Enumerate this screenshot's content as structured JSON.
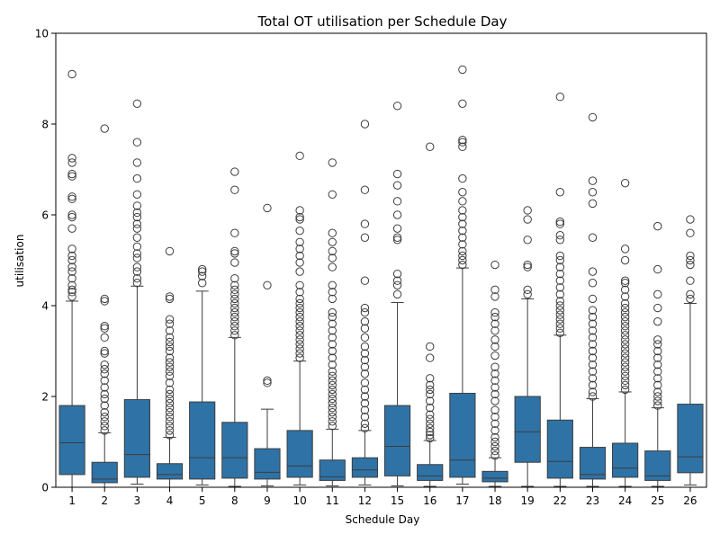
{
  "chart_data": {
    "type": "box",
    "title": "Total OT utilisation per Schedule Day",
    "xlabel": "Schedule Day",
    "ylabel": "utilisation",
    "ylim": [
      0,
      10
    ],
    "yticks": [
      0,
      2,
      4,
      6,
      8,
      10
    ],
    "grid": false,
    "legend": "none",
    "box_color": "#2f72a6",
    "categories": [
      "1",
      "2",
      "3",
      "4",
      "5",
      "8",
      "9",
      "10",
      "11",
      "12",
      "15",
      "16",
      "17",
      "18",
      "19",
      "22",
      "23",
      "24",
      "25",
      "26"
    ],
    "boxes": [
      {
        "day": "1",
        "whisker_low": 0.0,
        "q1": 0.28,
        "median": 0.98,
        "q3": 1.8,
        "whisker_high": 4.1,
        "outliers": [
          4.2,
          4.3,
          4.35,
          4.45,
          4.6,
          4.75,
          4.85,
          5.0,
          5.1,
          5.25,
          5.7,
          5.95,
          6.0,
          6.35,
          6.4,
          6.85,
          6.9,
          7.15,
          7.25,
          9.1
        ]
      },
      {
        "day": "2",
        "whisker_low": 0.0,
        "q1": 0.1,
        "median": 0.18,
        "q3": 0.55,
        "whisker_high": 1.2,
        "outliers": [
          1.25,
          1.35,
          1.45,
          1.55,
          1.65,
          1.8,
          1.95,
          2.05,
          2.2,
          2.35,
          2.5,
          2.6,
          2.7,
          2.95,
          3.0,
          3.3,
          3.5,
          3.55,
          4.1,
          4.15,
          7.9
        ]
      },
      {
        "day": "3",
        "whisker_low": 0.07,
        "q1": 0.22,
        "median": 0.72,
        "q3": 1.93,
        "whisker_high": 4.43,
        "outliers": [
          4.5,
          4.6,
          4.75,
          4.85,
          5.05,
          5.15,
          5.3,
          5.5,
          5.7,
          5.8,
          5.95,
          6.05,
          6.2,
          6.45,
          6.8,
          7.15,
          7.6,
          8.45
        ]
      },
      {
        "day": "4",
        "whisker_low": 0.0,
        "q1": 0.18,
        "median": 0.28,
        "q3": 0.52,
        "whisker_high": 1.1,
        "outliers": [
          1.15,
          1.25,
          1.35,
          1.45,
          1.55,
          1.65,
          1.75,
          1.85,
          1.95,
          2.05,
          2.15,
          2.3,
          2.45,
          2.55,
          2.65,
          2.75,
          2.85,
          3.0,
          3.1,
          3.2,
          3.3,
          3.45,
          3.6,
          3.7,
          4.15,
          4.2,
          5.2
        ]
      },
      {
        "day": "5",
        "whisker_low": 0.05,
        "q1": 0.18,
        "median": 0.65,
        "q3": 1.88,
        "whisker_high": 4.32,
        "outliers": [
          4.5,
          4.65,
          4.75,
          4.8
        ]
      },
      {
        "day": "8",
        "whisker_low": 0.02,
        "q1": 0.2,
        "median": 0.65,
        "q3": 1.43,
        "whisker_high": 3.3,
        "outliers": [
          3.35,
          3.45,
          3.55,
          3.65,
          3.75,
          3.85,
          3.95,
          4.05,
          4.15,
          4.25,
          4.35,
          4.45,
          4.6,
          4.95,
          5.15,
          5.2,
          5.6,
          6.55,
          6.95
        ]
      },
      {
        "day": "9",
        "whisker_low": 0.03,
        "q1": 0.18,
        "median": 0.33,
        "q3": 0.85,
        "whisker_high": 1.72,
        "outliers": [
          2.3,
          2.35,
          4.45,
          6.15
        ]
      },
      {
        "day": "10",
        "whisker_low": 0.05,
        "q1": 0.22,
        "median": 0.47,
        "q3": 1.25,
        "whisker_high": 2.78,
        "outliers": [
          2.85,
          2.95,
          3.05,
          3.15,
          3.25,
          3.35,
          3.45,
          3.55,
          3.65,
          3.75,
          3.85,
          3.95,
          4.05,
          4.15,
          4.3,
          4.45,
          4.75,
          4.95,
          5.1,
          5.25,
          5.4,
          5.65,
          5.9,
          5.95,
          6.1,
          7.3
        ]
      },
      {
        "day": "11",
        "whisker_low": 0.03,
        "q1": 0.15,
        "median": 0.23,
        "q3": 0.6,
        "whisker_high": 1.28,
        "outliers": [
          1.35,
          1.45,
          1.55,
          1.65,
          1.75,
          1.85,
          1.95,
          2.05,
          2.15,
          2.25,
          2.35,
          2.45,
          2.55,
          2.7,
          2.85,
          3.0,
          3.15,
          3.3,
          3.45,
          3.6,
          3.75,
          3.85,
          4.15,
          4.3,
          4.45,
          4.85,
          5.05,
          5.2,
          5.4,
          5.6,
          6.45,
          7.15
        ]
      },
      {
        "day": "12",
        "whisker_low": 0.05,
        "q1": 0.22,
        "median": 0.38,
        "q3": 0.65,
        "whisker_high": 1.25,
        "outliers": [
          1.3,
          1.4,
          1.55,
          1.7,
          1.85,
          2.0,
          2.15,
          2.3,
          2.5,
          2.65,
          2.8,
          2.95,
          3.1,
          3.3,
          3.5,
          3.65,
          3.85,
          3.95,
          4.55,
          5.5,
          5.8,
          6.55,
          8.0
        ]
      },
      {
        "day": "15",
        "whisker_low": 0.03,
        "q1": 0.25,
        "median": 0.9,
        "q3": 1.8,
        "whisker_high": 4.07,
        "outliers": [
          4.25,
          4.45,
          4.55,
          4.7,
          5.45,
          5.5,
          5.7,
          6.0,
          6.3,
          6.65,
          6.9,
          8.4
        ]
      },
      {
        "day": "16",
        "whisker_low": 0.02,
        "q1": 0.15,
        "median": 0.25,
        "q3": 0.5,
        "whisker_high": 1.03,
        "outliers": [
          1.08,
          1.15,
          1.22,
          1.3,
          1.4,
          1.5,
          1.6,
          1.75,
          1.9,
          2.05,
          2.15,
          2.25,
          2.4,
          2.85,
          3.1,
          7.5
        ]
      },
      {
        "day": "17",
        "whisker_low": 0.07,
        "q1": 0.22,
        "median": 0.6,
        "q3": 2.07,
        "whisker_high": 4.83,
        "outliers": [
          4.9,
          5.0,
          5.1,
          5.2,
          5.35,
          5.5,
          5.65,
          5.8,
          5.95,
          6.1,
          6.3,
          6.5,
          6.8,
          7.5,
          7.6,
          7.65,
          8.45,
          9.2
        ]
      },
      {
        "day": "18",
        "whisker_low": 0.02,
        "q1": 0.12,
        "median": 0.2,
        "q3": 0.35,
        "whisker_high": 0.65,
        "outliers": [
          0.7,
          0.8,
          0.9,
          1.0,
          1.1,
          1.25,
          1.4,
          1.55,
          1.7,
          1.9,
          2.05,
          2.2,
          2.35,
          2.5,
          2.65,
          2.9,
          3.1,
          3.25,
          3.45,
          3.6,
          3.75,
          3.85,
          4.2,
          4.35,
          4.9
        ]
      },
      {
        "day": "19",
        "whisker_low": 0.02,
        "q1": 0.55,
        "median": 1.22,
        "q3": 2.0,
        "whisker_high": 4.15,
        "outliers": [
          4.25,
          4.35,
          4.85,
          4.9,
          5.45,
          5.9,
          6.1
        ]
      },
      {
        "day": "22",
        "whisker_low": 0.02,
        "q1": 0.2,
        "median": 0.57,
        "q3": 1.48,
        "whisker_high": 3.35,
        "outliers": [
          3.4,
          3.5,
          3.6,
          3.7,
          3.8,
          3.9,
          4.0,
          4.1,
          4.25,
          4.4,
          4.55,
          4.7,
          4.85,
          5.0,
          5.1,
          5.45,
          5.55,
          5.8,
          5.85,
          6.5,
          8.6
        ]
      },
      {
        "day": "23",
        "whisker_low": 0.02,
        "q1": 0.18,
        "median": 0.28,
        "q3": 0.88,
        "whisker_high": 1.95,
        "outliers": [
          2.0,
          2.1,
          2.25,
          2.4,
          2.55,
          2.7,
          2.85,
          3.0,
          3.15,
          3.3,
          3.45,
          3.6,
          3.75,
          3.9,
          4.15,
          4.5,
          4.75,
          5.5,
          6.25,
          6.5,
          6.75,
          8.15
        ]
      },
      {
        "day": "24",
        "whisker_low": 0.02,
        "q1": 0.22,
        "median": 0.42,
        "q3": 0.97,
        "whisker_high": 2.1,
        "outliers": [
          2.15,
          2.25,
          2.35,
          2.45,
          2.55,
          2.65,
          2.75,
          2.85,
          2.95,
          3.05,
          3.15,
          3.25,
          3.35,
          3.45,
          3.55,
          3.65,
          3.75,
          3.85,
          3.95,
          4.05,
          4.2,
          4.35,
          4.5,
          4.55,
          5.0,
          5.25,
          6.7
        ]
      },
      {
        "day": "25",
        "whisker_low": 0.02,
        "q1": 0.15,
        "median": 0.25,
        "q3": 0.8,
        "whisker_high": 1.75,
        "outliers": [
          1.8,
          1.9,
          2.0,
          2.1,
          2.25,
          2.4,
          2.55,
          2.7,
          2.85,
          3.0,
          3.15,
          3.25,
          3.65,
          3.95,
          4.25,
          4.8,
          5.75
        ]
      },
      {
        "day": "26",
        "whisker_low": 0.05,
        "q1": 0.32,
        "median": 0.67,
        "q3": 1.83,
        "whisker_high": 4.05,
        "outliers": [
          4.15,
          4.25,
          4.55,
          4.9,
          5.0,
          5.1,
          5.6,
          5.9
        ]
      }
    ]
  }
}
